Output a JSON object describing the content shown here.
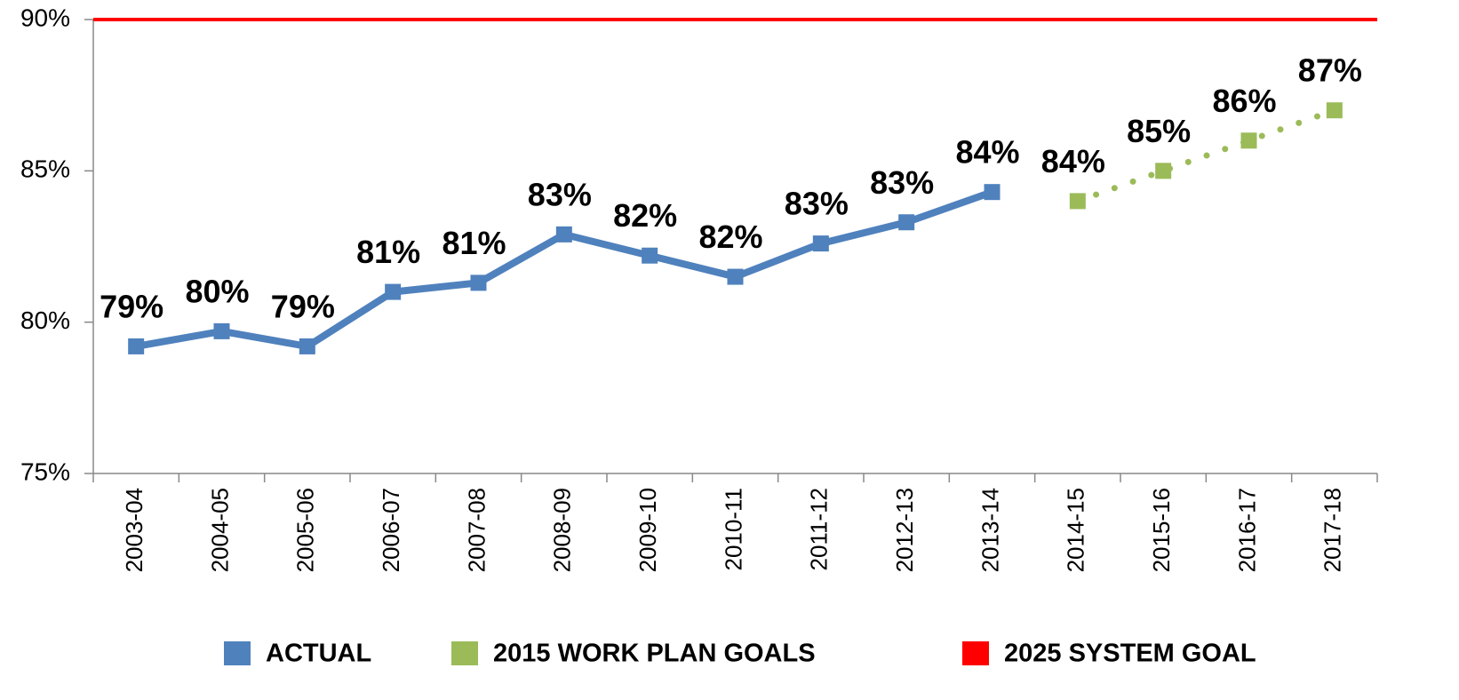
{
  "chart_data": {
    "type": "line",
    "categories": [
      "2003-04",
      "2004-05",
      "2005-06",
      "2006-07",
      "2007-08",
      "2008-09",
      "2009-10",
      "2010-11",
      "2011-12",
      "2012-13",
      "2013-14",
      "2014-15",
      "2015-16",
      "2016-17",
      "2017-18"
    ],
    "series": [
      {
        "name": "ACTUAL",
        "color": "#4f81bd",
        "style": "solid",
        "values": [
          79.2,
          79.7,
          79.2,
          81.0,
          81.3,
          82.9,
          82.2,
          81.5,
          82.6,
          83.3,
          84.3,
          null,
          null,
          null,
          null
        ],
        "value_labels": [
          "79%",
          "80%",
          "79%",
          "81%",
          "81%",
          "83%",
          "82%",
          "82%",
          "83%",
          "83%",
          "84%",
          null,
          null,
          null,
          null
        ]
      },
      {
        "name": "2015 WORK PLAN GOALS",
        "color": "#9bbb59",
        "style": "dotted",
        "values": [
          null,
          null,
          null,
          null,
          null,
          null,
          null,
          null,
          null,
          null,
          null,
          84.0,
          85.0,
          86.0,
          87.0
        ],
        "value_labels": [
          null,
          null,
          null,
          null,
          null,
          null,
          null,
          null,
          null,
          null,
          null,
          "84%",
          "85%",
          "86%",
          "87%"
        ]
      },
      {
        "name": "2025 SYSTEM GOAL",
        "color": "#ff0000",
        "style": "reference",
        "values": [
          90,
          90,
          90,
          90,
          90,
          90,
          90,
          90,
          90,
          90,
          90,
          90,
          90,
          90,
          90
        ]
      }
    ],
    "ylim": [
      75,
      90
    ],
    "yticks": [
      {
        "value": 75,
        "label": "75%"
      },
      {
        "value": 80,
        "label": "80%"
      },
      {
        "value": 85,
        "label": "85%"
      },
      {
        "value": 90,
        "label": "90%"
      }
    ],
    "grid": false,
    "legend": "bottom"
  }
}
